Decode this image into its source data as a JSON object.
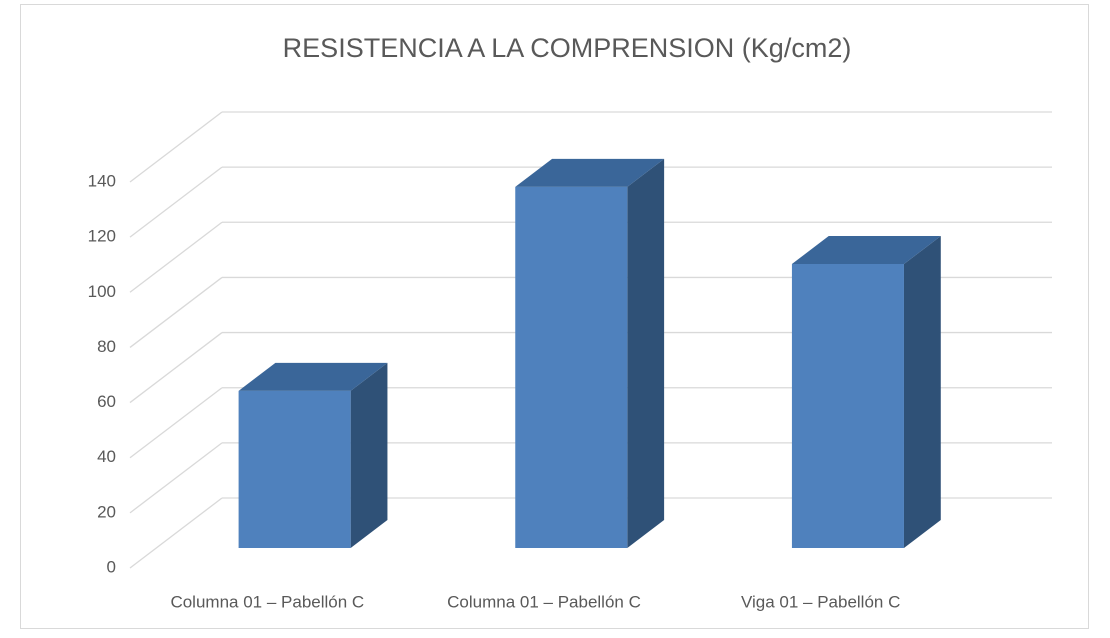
{
  "chart_data": {
    "type": "bar3d",
    "title": "RESISTENCIA A LA COMPRENSION (Kg/cm2)",
    "categories": [
      "Columna 01 – Pabellón C",
      "Columna 01 – Pabellón C",
      "Viga 01 – Pabellón C"
    ],
    "values": [
      57,
      131,
      103
    ],
    "color": "#4f81bd",
    "ylim": [
      0,
      140
    ],
    "yticks": [
      0,
      20,
      40,
      60,
      80,
      100,
      120,
      140
    ],
    "grid": true
  }
}
